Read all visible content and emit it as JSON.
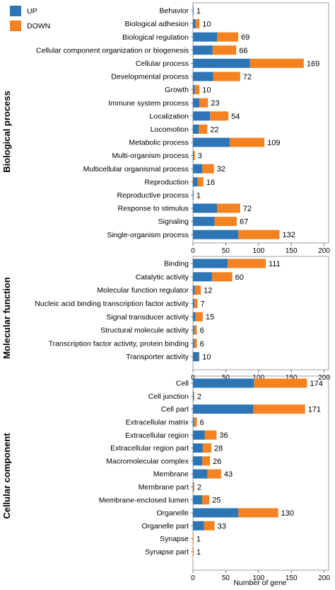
{
  "chart_data": {
    "type": "bar",
    "orientation": "horizontal",
    "stacked": true,
    "legend": {
      "position": "top-left",
      "items": [
        {
          "name": "UP",
          "color": "#2E75B6"
        },
        {
          "name": "DOWN",
          "color": "#F58220"
        }
      ]
    },
    "xlabel": "Number of gene",
    "xlim": [
      0,
      220
    ],
    "xticks": [
      0,
      50,
      100,
      150,
      200
    ],
    "grid": false,
    "panels": [
      {
        "title": "Biological process",
        "categories": [
          "Behavior",
          "Biological adhesion",
          "Biological regulation",
          "Cellular component organization or biogenesis",
          "Cellular process",
          "Developmental process",
          "Growth",
          "Immune system process",
          "Localization",
          "Locomotion",
          "Metabolic process",
          "Multi-organism process",
          "Multicellular organismal process",
          "Reproduction",
          "Reproductive process",
          "Response to stimulus",
          "Signaling",
          "Single-organism process"
        ],
        "series": [
          {
            "name": "UP",
            "values": [
              1,
              4,
              37,
              30,
              87,
              31,
              3,
              10,
              26,
              9,
              56,
              1,
              14,
              7,
              1,
              37,
              33,
              69
            ]
          },
          {
            "name": "DOWN",
            "values": [
              0,
              6,
              32,
              36,
              82,
              41,
              7,
              13,
              28,
              13,
              53,
              2,
              18,
              9,
              0,
              35,
              34,
              63
            ]
          }
        ],
        "totals": [
          "1",
          "10",
          "69",
          "66",
          "169",
          "72",
          "10",
          "23",
          "54",
          "22",
          "109",
          "3",
          "32",
          "16",
          "1",
          "72",
          "67",
          "132"
        ]
      },
      {
        "title": "Molecular function",
        "categories": [
          "Binding",
          "Catalytic activity",
          "Molecular function regulator",
          "Nucleic acid binding transcription factor activity",
          "Signal transducer activity",
          "Structural molecule activity",
          "Transcription factor activity, protein binding",
          "Transporter activity"
        ],
        "series": [
          {
            "name": "UP",
            "values": [
              53,
              29,
              3,
              2,
              4,
              2,
              2,
              9
            ]
          },
          {
            "name": "DOWN",
            "values": [
              58,
              31,
              9,
              5,
              11,
              4,
              4,
              1
            ]
          }
        ],
        "totals": [
          "111",
          "60",
          "12",
          "7",
          "15",
          "6",
          "6",
          "10"
        ]
      },
      {
        "title": "Cellular component",
        "categories": [
          "Cell",
          "Cell junction",
          "Cell part",
          "Extracellular matrix",
          "Extracellular region",
          "Extracellular region part",
          "Macromolecular complex",
          "Membrane",
          "Membrane part",
          "Membrane-enclosed lumen",
          "Organelle",
          "Organelle part",
          "Synapse",
          "Synapse part"
        ],
        "series": [
          {
            "name": "UP",
            "values": [
              93,
              1,
              92,
              2,
              18,
              15,
              14,
              22,
              1,
              14,
              69,
              17,
              0,
              0
            ]
          },
          {
            "name": "DOWN",
            "values": [
              81,
              1,
              79,
              4,
              18,
              13,
              12,
              21,
              1,
              11,
              61,
              16,
              1,
              1
            ]
          }
        ],
        "totals": [
          "174",
          "2",
          "171",
          "6",
          "36",
          "28",
          "26",
          "43",
          "2",
          "25",
          "130",
          "33",
          "1",
          "1"
        ]
      }
    ]
  }
}
